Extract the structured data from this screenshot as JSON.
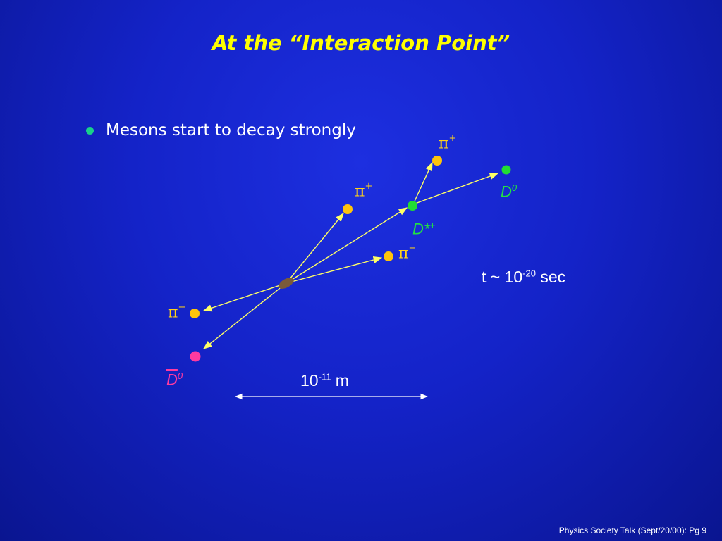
{
  "title": "At the “Interaction Point”",
  "bullet": "Mesons start to decay strongly",
  "labels": {
    "pi_plus_top": {
      "base": "π",
      "sup": "+"
    },
    "pi_plus_mid": {
      "base": "π",
      "sup": "+"
    },
    "pi_minus_right": {
      "base": "π",
      "sup": "−"
    },
    "pi_minus_left": {
      "base": "π",
      "sup": "−"
    },
    "d0": {
      "base": "D",
      "sup": "0"
    },
    "d_star": {
      "base": "D*",
      "sup": "+"
    },
    "d0_bar": {
      "base": "D",
      "sup": "0"
    }
  },
  "time_label": {
    "base": "t ~ 10",
    "sup": "-20",
    "suffix": " sec"
  },
  "scale_label": {
    "base": "10",
    "sup": "-11",
    "suffix": " m"
  },
  "footer": "Physics Society Talk (Sept/20/00): Pg 9",
  "colors": {
    "title": "#ffff00",
    "pion": "#ffc40a",
    "d_meson": "#22dd33",
    "d_bar": "#ff3aa0",
    "origin": "#7a5a3a",
    "arrow": "#ffff66",
    "scale_arrow": "#ffffff",
    "bullet": "#19d08a"
  }
}
